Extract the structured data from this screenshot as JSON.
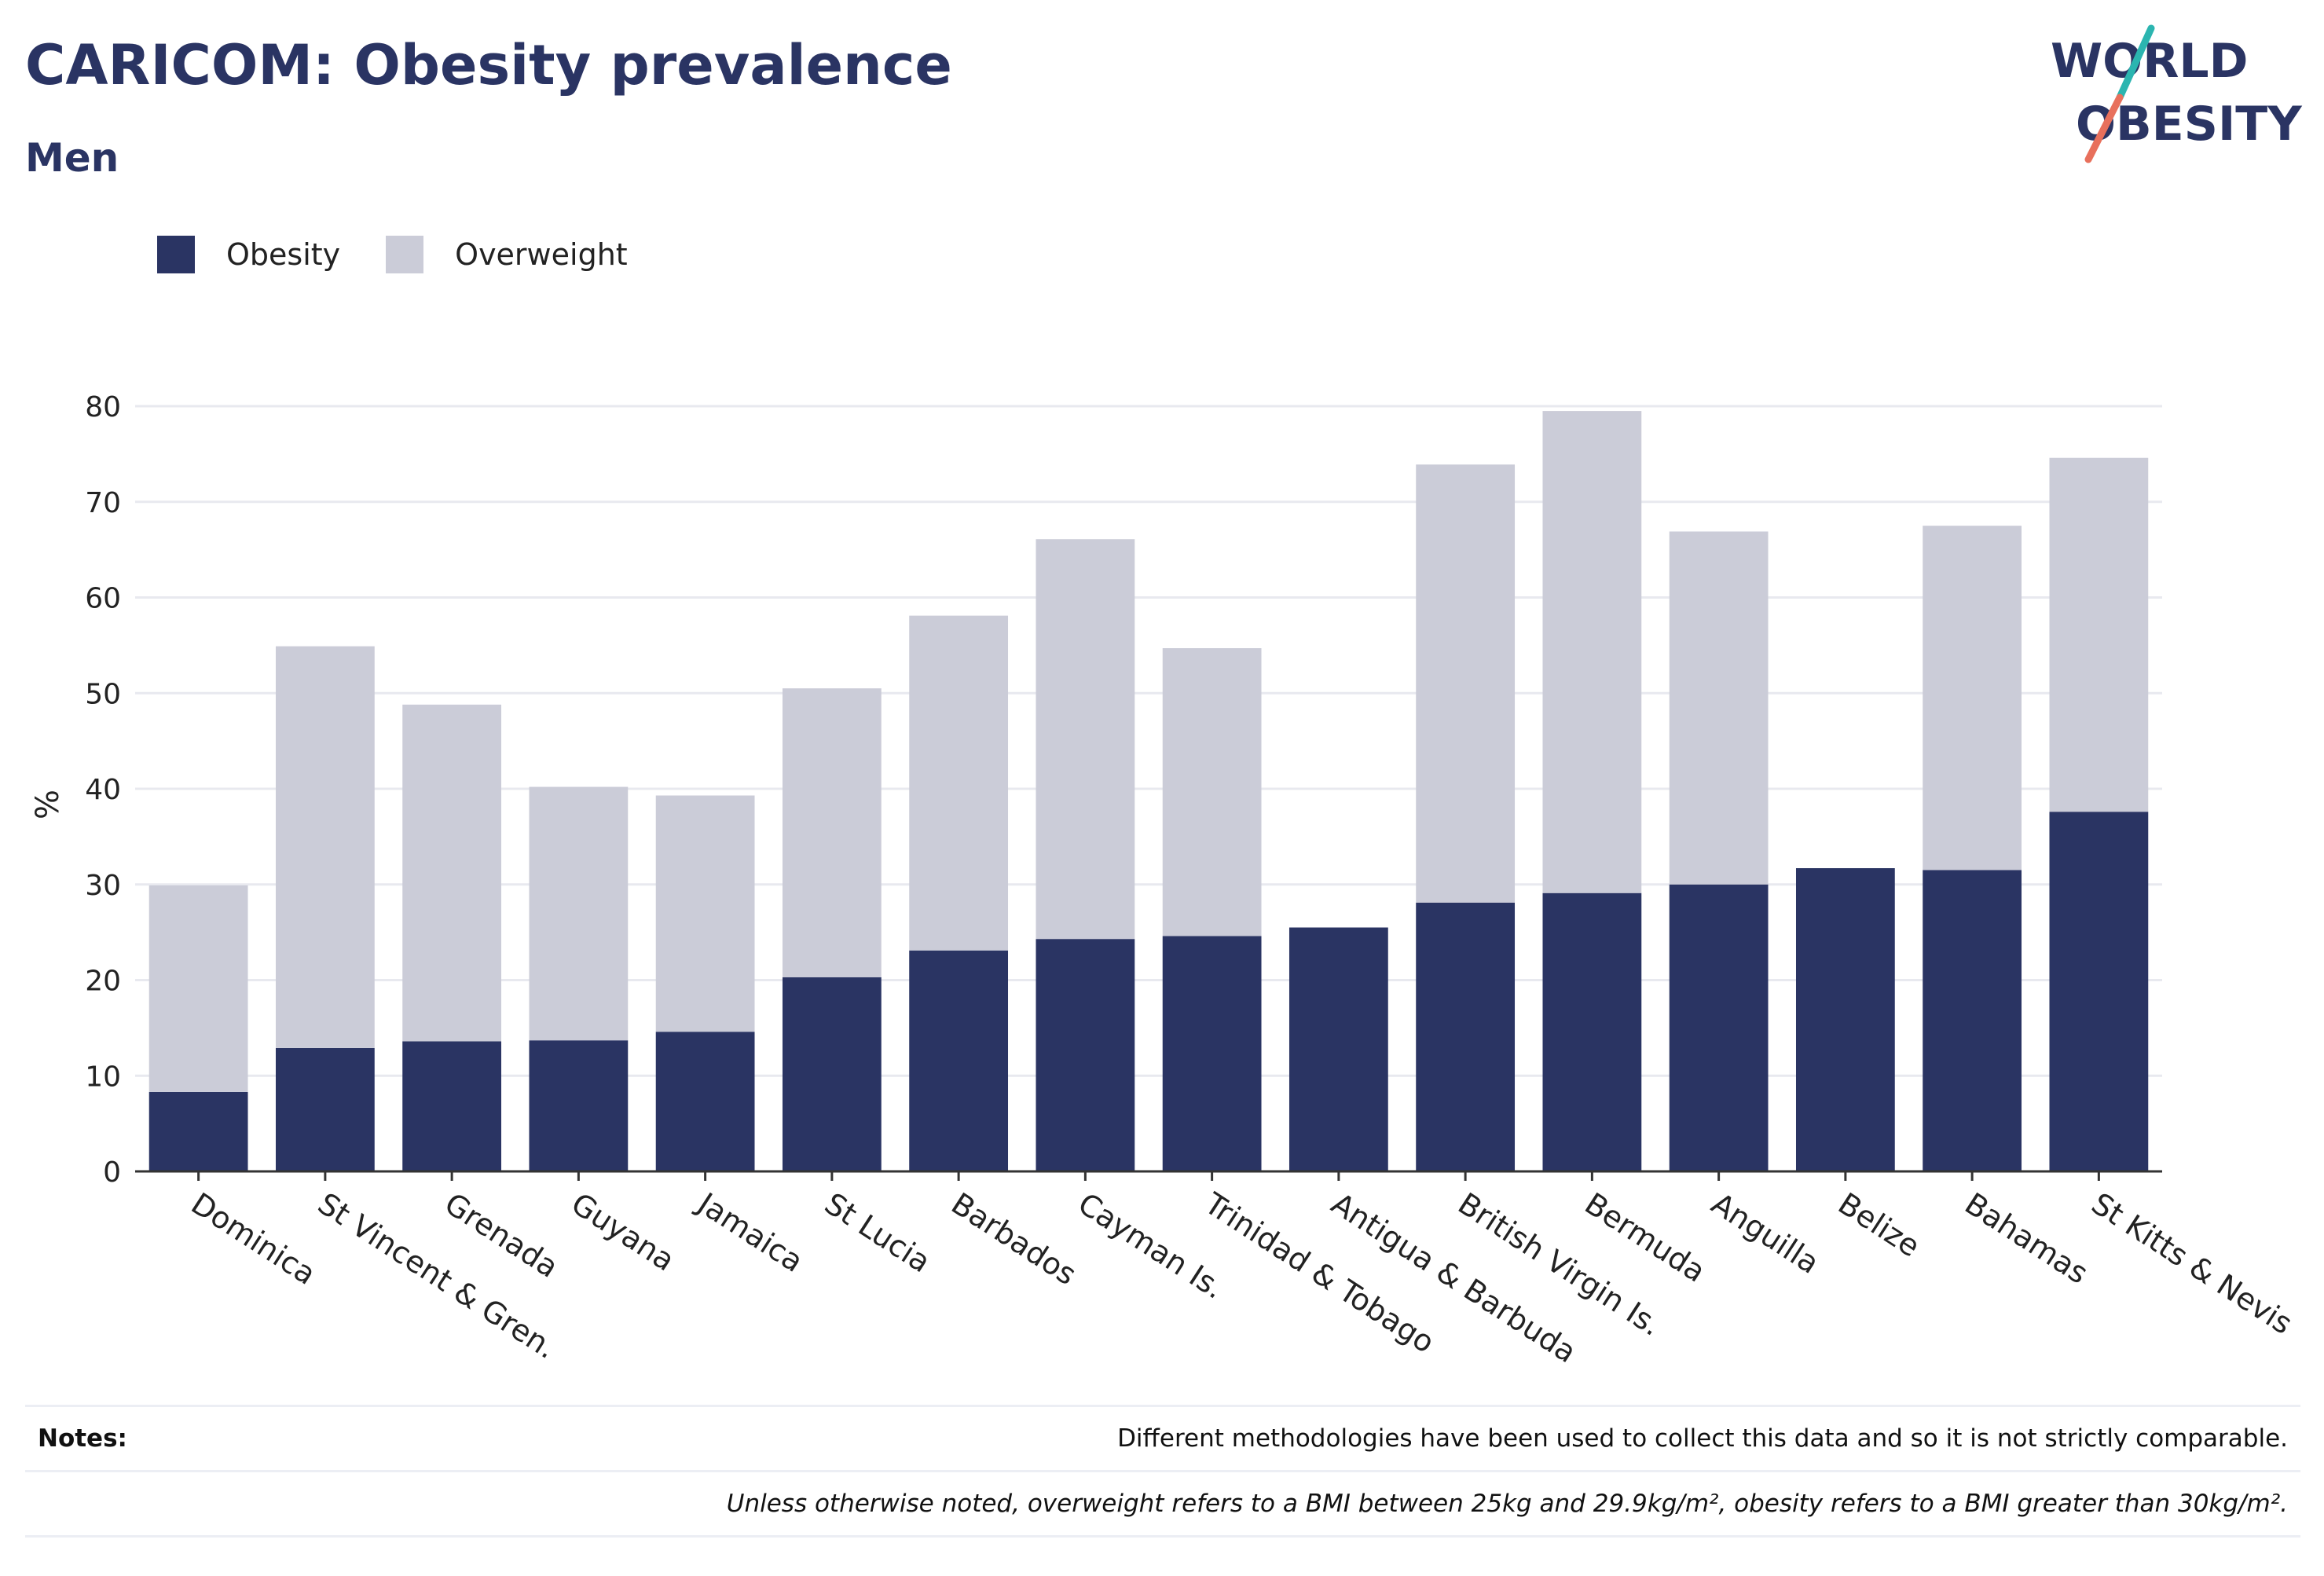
{
  "header": {
    "title": "CARICOM: Obesity prevalence",
    "subtitle": "Men"
  },
  "logo": {
    "line1": "WORLD",
    "line2": "OBESITY",
    "colors": {
      "text": "#2a3463",
      "slash_teal": "#2bb5b0",
      "slash_coral": "#e8705c"
    }
  },
  "legend": {
    "items": [
      {
        "label": "Obesity",
        "color": "#2a3463"
      },
      {
        "label": "Overweight",
        "color": "#cbccd8"
      }
    ]
  },
  "chart_data": {
    "type": "bar",
    "stacked": true,
    "categories": [
      "Dominica",
      "St Vincent & Gren.",
      "Grenada",
      "Guyana",
      "Jamaica",
      "St Lucia",
      "Barbados",
      "Cayman Is.",
      "Trinidad & Tobago",
      "Antigua & Barbuda",
      "British Virgin Is.",
      "Bermuda",
      "Anguilla",
      "Belize",
      "Bahamas",
      "St Kitts & Nevis"
    ],
    "series": [
      {
        "name": "Obesity",
        "color": "#2a3463",
        "values": [
          8.3,
          12.9,
          13.6,
          13.7,
          14.6,
          20.3,
          23.1,
          24.3,
          24.6,
          25.5,
          28.1,
          29.1,
          30.0,
          31.7,
          31.5,
          37.6
        ]
      },
      {
        "name": "Overweight",
        "color": "#cbccd8",
        "values": [
          21.6,
          42.0,
          35.2,
          26.5,
          24.7,
          30.2,
          35.0,
          41.8,
          30.1,
          0,
          45.8,
          50.4,
          36.9,
          0,
          36.0,
          37.0
        ]
      }
    ],
    "ylabel": "%",
    "xlabel": "",
    "ylim": [
      0,
      80
    ],
    "yticks": [
      0,
      10,
      20,
      30,
      40,
      50,
      60,
      70,
      80
    ],
    "grid": true,
    "legend_position": "top-left"
  },
  "notes": {
    "label": "Notes:",
    "line1": "Different methodologies have been used to collect this data and so it is not strictly comparable.",
    "line2": "Unless otherwise noted, overweight refers to a BMI between 25kg and 29.9kg/m², obesity refers to a BMI greater than 30kg/m²."
  }
}
